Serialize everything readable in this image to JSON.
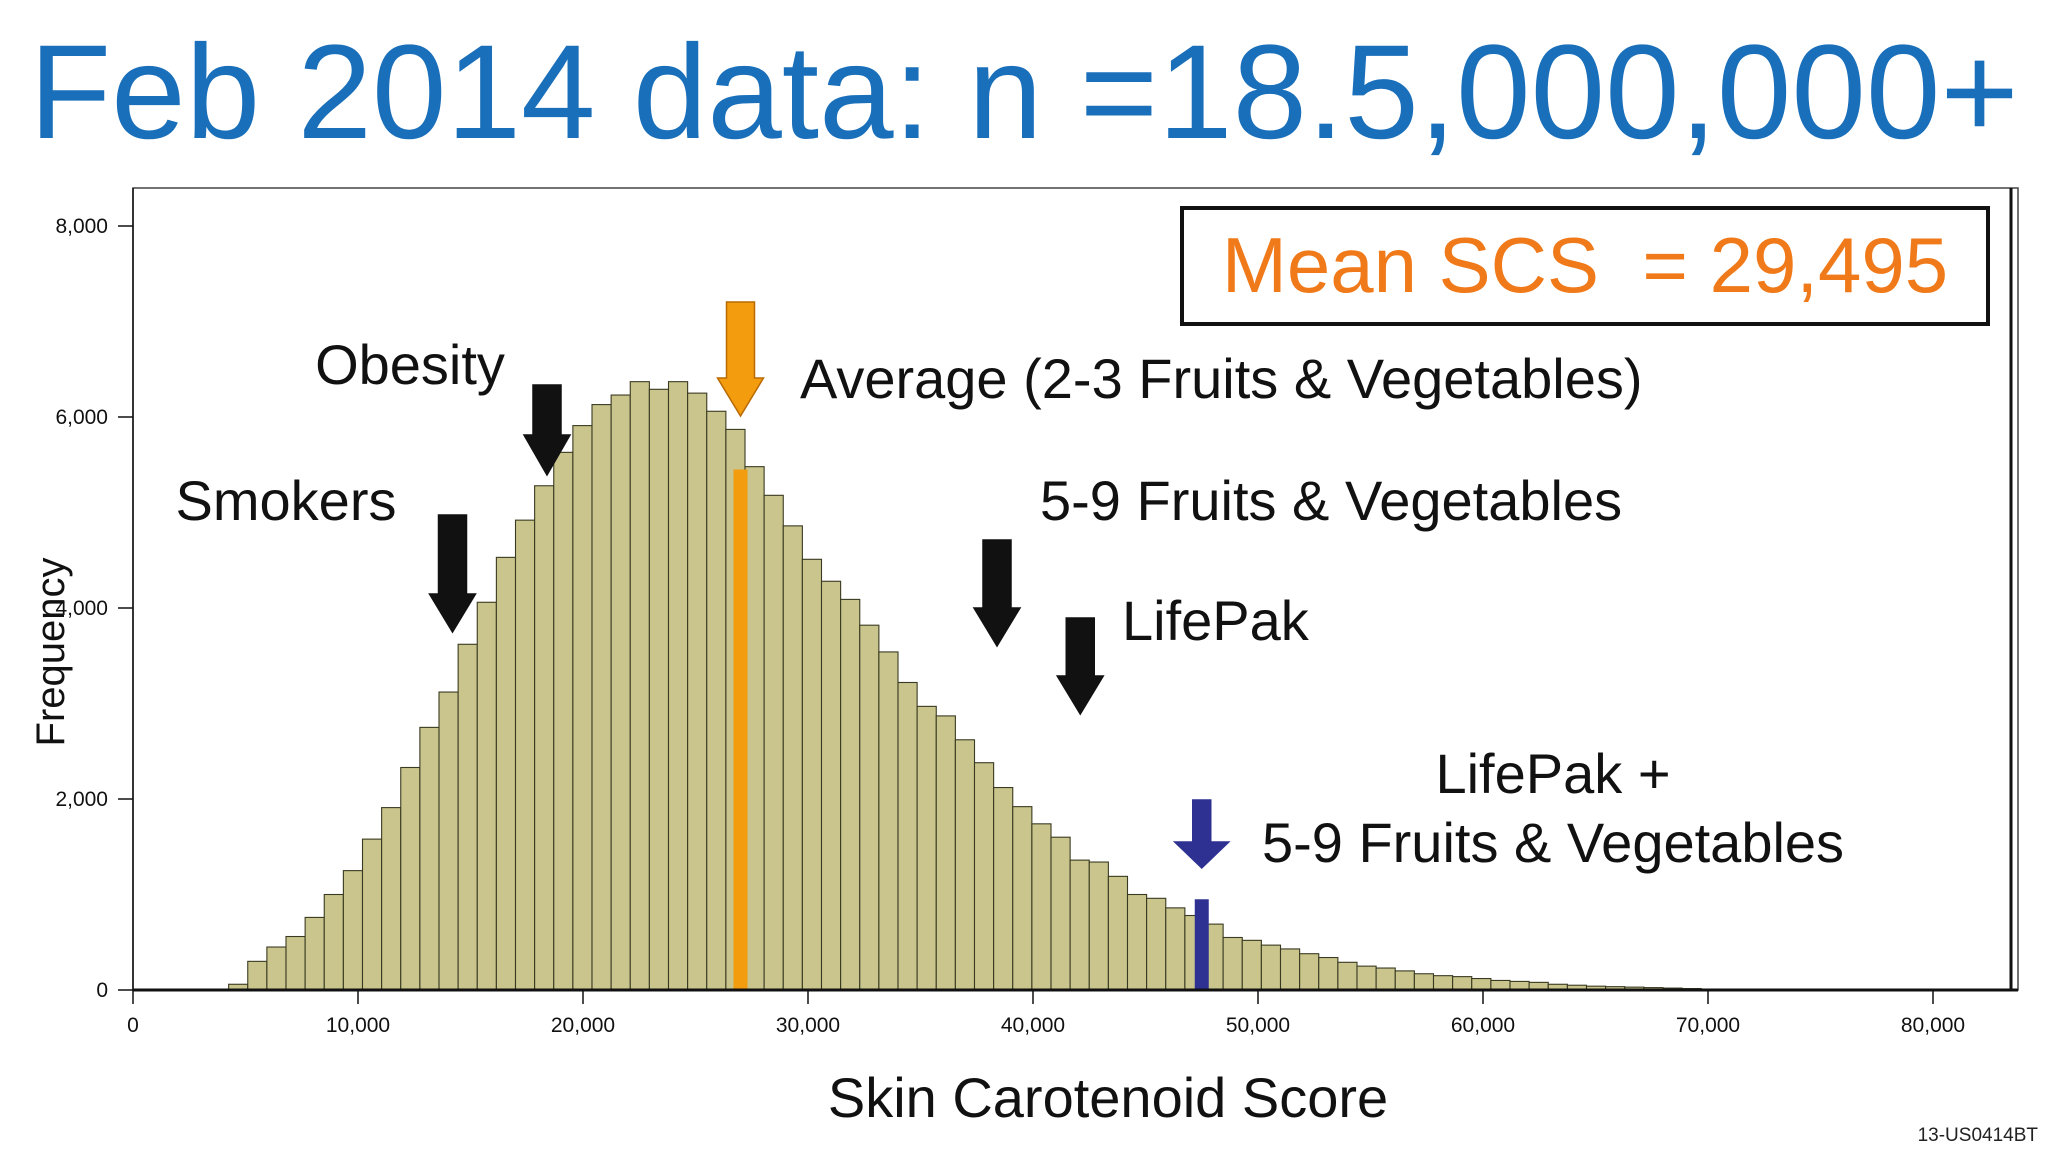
{
  "title": "Feb 2014 data: n =18.5,000,000+",
  "footer_code": "13-US0414BT",
  "colors": {
    "title": "#1a6fba",
    "bar_fill": "#c9c58c",
    "bar_stroke": "#3a3a22",
    "mean_box_text": "#f07a1a",
    "average_arrow": "#f39c0e",
    "lifepak_arrow": "#2e3192",
    "black_arrow": "#111111"
  },
  "chart_data": {
    "type": "bar",
    "subtype": "histogram",
    "xlabel": "Skin Carotenoid Score",
    "ylabel": "Frequency",
    "xlim": [
      0,
      84000
    ],
    "ylim": [
      0,
      8400
    ],
    "x_ticks": [
      0,
      10000,
      20000,
      30000,
      40000,
      50000,
      60000,
      70000,
      80000
    ],
    "x_tick_labels": [
      "0",
      "10,000",
      "20,000",
      "30,000",
      "40,000",
      "50,000",
      "60,000",
      "70,000",
      "80,000"
    ],
    "y_ticks": [
      0,
      2000,
      4000,
      6000,
      8000
    ],
    "y_tick_labels": [
      "0",
      "2,000",
      "4,000",
      "6,000",
      "8,000"
    ],
    "bin_width": 850,
    "bin_start": 4250,
    "values": [
      60,
      300,
      450,
      560,
      760,
      1000,
      1250,
      1580,
      1910,
      2330,
      2750,
      3120,
      3620,
      4060,
      4530,
      4920,
      5280,
      5630,
      5910,
      6130,
      6230,
      6370,
      6290,
      6370,
      6250,
      6060,
      5870,
      5480,
      5180,
      4860,
      4510,
      4280,
      4090,
      3820,
      3540,
      3220,
      2970,
      2870,
      2620,
      2380,
      2120,
      1920,
      1740,
      1600,
      1360,
      1340,
      1190,
      1000,
      960,
      860,
      780,
      690,
      550,
      520,
      470,
      430,
      380,
      340,
      290,
      250,
      230,
      200,
      170,
      150,
      140,
      120,
      100,
      90,
      80,
      60,
      50,
      40,
      35,
      30,
      25,
      20,
      15,
      10,
      8,
      5,
      4,
      3,
      2
    ],
    "highlights": [
      {
        "x": 27000,
        "value": 5450,
        "color": "#f39c0e"
      },
      {
        "x": 47500,
        "value": 950,
        "color": "#2e3192"
      }
    ],
    "mean_box": "Mean SCS  = 29,495",
    "annotations": [
      {
        "label": "Obesity",
        "x": 18400,
        "arrow_color": "#111111"
      },
      {
        "label": "Smokers",
        "x": 14200,
        "arrow_color": "#111111"
      },
      {
        "label": "Average (2-3 Fruits & Vegetables)",
        "x": 27000,
        "arrow_color": "#f39c0e"
      },
      {
        "label": "5-9 Fruits & Vegetables",
        "x": 38400,
        "arrow_color": "#111111"
      },
      {
        "label": "LifePak",
        "x": 42100,
        "arrow_color": "#111111"
      },
      {
        "label": "LifePak +",
        "x": 47500,
        "arrow_color": "#2e3192"
      },
      {
        "label": "5-9 Fruits & Vegetables",
        "x": 47500,
        "arrow_color": "#2e3192"
      }
    ]
  }
}
